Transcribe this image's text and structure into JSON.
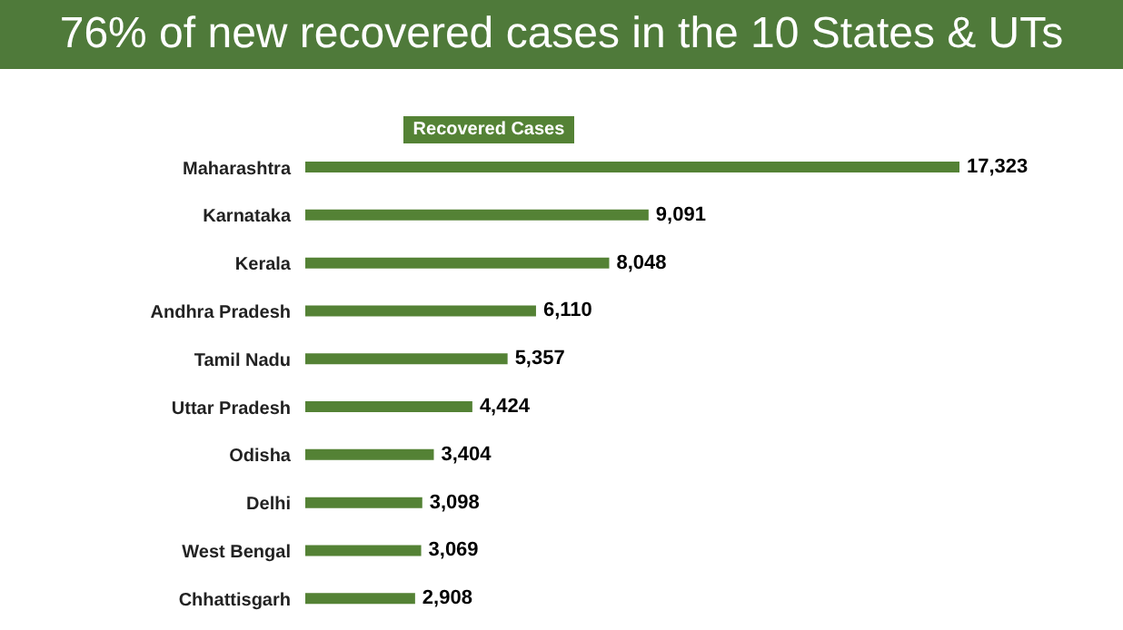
{
  "chart_data": {
    "type": "bar",
    "orientation": "horizontal",
    "title": "76% of new recovered cases in the 10 States & UTs",
    "categories": [
      "Maharashtra",
      "Karnataka",
      "Kerala",
      "Andhra Pradesh",
      "Tamil Nadu",
      "Uttar Pradesh",
      "Odisha",
      "Delhi",
      "West Bengal",
      "Chhattisgarh"
    ],
    "series": [
      {
        "name": "Recovered Cases",
        "color": "#548235",
        "values": [
          17323,
          9091,
          8048,
          6110,
          5357,
          4424,
          3404,
          3098,
          3069,
          2908
        ],
        "value_labels": [
          "17,323",
          "9,091",
          "8,048",
          "6,110",
          "5,357",
          "4,424",
          "3,404",
          "3,098",
          "3,069",
          "2,908"
        ]
      }
    ],
    "legend": "top",
    "grid": false
  }
}
